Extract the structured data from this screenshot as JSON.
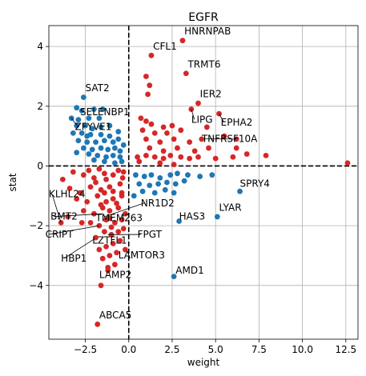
{
  "chart_data": {
    "type": "scatter",
    "title": "EGFR",
    "xlabel": "weight",
    "ylabel": "stat",
    "xlim": [
      -4.6,
      13.2
    ],
    "ylim": [
      -5.8,
      4.7
    ],
    "xticks": [
      -2.5,
      0.0,
      2.5,
      5.0,
      7.5,
      10.0,
      12.5
    ],
    "xtick_labels": [
      "−2.5",
      "0.0",
      "2.5",
      "5.0",
      "7.5",
      "10.0",
      "12.5"
    ],
    "yticks": [
      -4,
      -2,
      0,
      2,
      4
    ],
    "ytick_labels": [
      "−4",
      "−2",
      "0",
      "2",
      "4"
    ],
    "grid": true,
    "reference_lines": {
      "x": 0,
      "y": 0,
      "style": "dashed"
    },
    "colors": {
      "up": "#d62728",
      "down": "#1f77b4"
    },
    "series": [
      {
        "name": "red",
        "color": "#d62728",
        "points": [
          [
            3.1,
            4.2
          ],
          [
            1.3,
            3.7
          ],
          [
            3.3,
            3.1
          ],
          [
            1.0,
            3.0
          ],
          [
            1.2,
            2.7
          ],
          [
            1.1,
            2.4
          ],
          [
            4.0,
            2.1
          ],
          [
            3.6,
            1.9
          ],
          [
            5.2,
            1.75
          ],
          [
            0.7,
            1.6
          ],
          [
            1.0,
            1.5
          ],
          [
            1.3,
            1.4
          ],
          [
            2.0,
            1.3
          ],
          [
            2.5,
            1.35
          ],
          [
            0.8,
            1.2
          ],
          [
            1.5,
            1.1
          ],
          [
            2.2,
            1.1
          ],
          [
            3.0,
            1.2
          ],
          [
            4.5,
            1.3
          ],
          [
            5.5,
            1.0
          ],
          [
            6.2,
            0.9
          ],
          [
            1.0,
            0.9
          ],
          [
            1.8,
            0.8
          ],
          [
            2.6,
            0.9
          ],
          [
            3.5,
            0.8
          ],
          [
            4.2,
            0.9
          ],
          [
            1.2,
            0.6
          ],
          [
            2.0,
            0.5
          ],
          [
            2.8,
            0.6
          ],
          [
            3.8,
            0.5
          ],
          [
            4.6,
            0.6
          ],
          [
            6.2,
            0.6
          ],
          [
            0.5,
            0.3
          ],
          [
            1.0,
            0.35
          ],
          [
            1.5,
            0.3
          ],
          [
            2.0,
            0.25
          ],
          [
            2.4,
            0.35
          ],
          [
            3.0,
            0.3
          ],
          [
            3.5,
            0.25
          ],
          [
            4.0,
            0.3
          ],
          [
            5.0,
            0.25
          ],
          [
            6.0,
            0.3
          ],
          [
            6.8,
            0.4
          ],
          [
            7.9,
            0.35
          ],
          [
            12.6,
            0.1
          ],
          [
            0.6,
            0.15
          ],
          [
            1.8,
            0.1
          ],
          [
            2.6,
            0.05
          ],
          [
            -0.3,
            -0.2
          ],
          [
            -0.9,
            -0.3
          ],
          [
            -1.4,
            -0.25
          ],
          [
            -2.0,
            -0.4
          ],
          [
            -2.6,
            -0.3
          ],
          [
            -3.2,
            -0.2
          ],
          [
            -3.8,
            -0.45
          ],
          [
            -0.5,
            -0.6
          ],
          [
            -1.1,
            -0.7
          ],
          [
            -1.6,
            -0.8
          ],
          [
            -2.2,
            -0.7
          ],
          [
            -2.8,
            -0.9
          ],
          [
            -3.4,
            -0.75
          ],
          [
            -0.4,
            -1.0
          ],
          [
            -0.9,
            -1.1
          ],
          [
            -1.3,
            -1.2
          ],
          [
            -1.8,
            -1.0
          ],
          [
            -2.4,
            -1.2
          ],
          [
            -3.0,
            -1.1
          ],
          [
            -0.6,
            -1.4
          ],
          [
            -1.1,
            -1.5
          ],
          [
            -1.5,
            -1.4
          ],
          [
            -2.0,
            -1.6
          ],
          [
            -2.6,
            -1.5
          ],
          [
            -0.4,
            -1.8
          ],
          [
            -0.8,
            -1.9
          ],
          [
            -1.3,
            -1.8
          ],
          [
            -1.7,
            -2.0
          ],
          [
            -2.2,
            -1.9
          ],
          [
            -0.6,
            -2.2
          ],
          [
            -1.0,
            -2.3
          ],
          [
            -1.4,
            -2.2
          ],
          [
            -1.9,
            -2.4
          ],
          [
            -0.5,
            -2.5
          ],
          [
            -0.9,
            -2.6
          ],
          [
            -1.3,
            -2.7
          ],
          [
            -1.7,
            -2.8
          ],
          [
            -0.7,
            -2.9
          ],
          [
            -1.1,
            -3.0
          ],
          [
            -1.5,
            -3.1
          ],
          [
            -0.8,
            -3.3
          ],
          [
            -1.2,
            -3.4
          ],
          [
            -0.4,
            -0.9
          ],
          [
            -0.2,
            -1.6
          ],
          [
            -0.3,
            -2.1
          ],
          [
            -0.2,
            -2.8
          ],
          [
            -0.35,
            -0.4
          ],
          [
            -0.6,
            -0.15
          ],
          [
            -1.3,
            -0.45
          ],
          [
            -1.6,
            -1.3
          ],
          [
            -1.1,
            -1.75
          ],
          [
            -0.7,
            -1.25
          ],
          [
            -1.4,
            -0.9
          ],
          [
            -1.9,
            -0.55
          ],
          [
            -1.0,
            -2.05
          ],
          [
            -0.9,
            -0.85
          ],
          [
            -2.7,
            -1.9
          ],
          [
            -3.5,
            -1.7
          ],
          [
            -3.9,
            -1.9
          ],
          [
            -1.6,
            -4.0
          ],
          [
            -1.8,
            -5.3
          ],
          [
            -1.2,
            -3.5
          ],
          [
            -1.7,
            -0.1
          ],
          [
            -2.3,
            -0.15
          ]
        ]
      },
      {
        "name": "blue",
        "color": "#1f77b4",
        "points": [
          [
            -2.6,
            2.3
          ],
          [
            -3.0,
            1.95
          ],
          [
            -2.7,
            1.85
          ],
          [
            -2.0,
            1.9
          ],
          [
            -1.5,
            1.9
          ],
          [
            -3.3,
            1.6
          ],
          [
            -2.9,
            1.55
          ],
          [
            -2.3,
            1.6
          ],
          [
            -1.7,
            1.6
          ],
          [
            -3.0,
            1.35
          ],
          [
            -2.5,
            1.35
          ],
          [
            -2.1,
            1.25
          ],
          [
            -1.6,
            1.3
          ],
          [
            -1.1,
            1.35
          ],
          [
            -3.2,
            1.1
          ],
          [
            -2.7,
            1.1
          ],
          [
            -2.2,
            1.05
          ],
          [
            -1.6,
            1.05
          ],
          [
            -1.1,
            1.0
          ],
          [
            -0.6,
            1.15
          ],
          [
            -2.9,
            0.85
          ],
          [
            -2.4,
            0.8
          ],
          [
            -1.9,
            0.8
          ],
          [
            -1.4,
            0.85
          ],
          [
            -0.9,
            0.8
          ],
          [
            -0.6,
            0.9
          ],
          [
            -2.6,
            0.6
          ],
          [
            -2.1,
            0.55
          ],
          [
            -1.6,
            0.6
          ],
          [
            -1.2,
            0.55
          ],
          [
            -0.8,
            0.6
          ],
          [
            -0.5,
            0.5
          ],
          [
            -3.0,
            0.45
          ],
          [
            -2.3,
            0.4
          ],
          [
            -1.8,
            0.35
          ],
          [
            -1.3,
            0.3
          ],
          [
            -0.9,
            0.35
          ],
          [
            -0.5,
            0.3
          ],
          [
            -2.0,
            0.2
          ],
          [
            -1.4,
            0.15
          ],
          [
            -0.8,
            0.1
          ],
          [
            -0.4,
            0.15
          ],
          [
            0.4,
            -0.3
          ],
          [
            0.9,
            -0.35
          ],
          [
            1.3,
            -0.3
          ],
          [
            1.8,
            -0.4
          ],
          [
            2.4,
            -0.3
          ],
          [
            2.8,
            -0.25
          ],
          [
            3.4,
            -0.3
          ],
          [
            0.6,
            -0.6
          ],
          [
            1.2,
            -0.65
          ],
          [
            1.7,
            -0.6
          ],
          [
            2.2,
            -0.55
          ],
          [
            2.7,
            -0.6
          ],
          [
            3.2,
            -0.5
          ],
          [
            4.1,
            -0.35
          ],
          [
            4.8,
            -0.3
          ],
          [
            0.8,
            -0.85
          ],
          [
            1.5,
            -0.9
          ],
          [
            2.1,
            -0.8
          ],
          [
            2.6,
            -0.9
          ],
          [
            0.3,
            -1.0
          ],
          [
            6.4,
            -0.85
          ],
          [
            5.1,
            -1.7
          ],
          [
            2.9,
            -1.85
          ],
          [
            2.6,
            -3.7
          ],
          [
            -0.3,
            0.7
          ],
          [
            -2.4,
            1.0
          ]
        ]
      }
    ],
    "annotations": [
      {
        "text": "HNRNPAB",
        "x": 3.1,
        "y": 4.2,
        "label_x": 3.2,
        "label_y": 4.4
      },
      {
        "text": "CFL1",
        "x": 1.3,
        "y": 3.7,
        "label_x": 1.4,
        "label_y": 3.9
      },
      {
        "text": "TRMT6",
        "x": 3.3,
        "y": 3.1,
        "label_x": 3.4,
        "label_y": 3.3
      },
      {
        "text": "IER2",
        "x": 4.0,
        "y": 2.1,
        "label_x": 4.1,
        "label_y": 2.3
      },
      {
        "text": "LIPG",
        "x": 3.6,
        "y": 1.9,
        "label_x": 3.6,
        "label_y": 1.45
      },
      {
        "text": "EPHA2",
        "x": 5.2,
        "y": 1.75,
        "label_x": 5.3,
        "label_y": 1.35
      },
      {
        "text": "TNFRSF10A",
        "x": 6.2,
        "y": 0.9,
        "label_x": 4.2,
        "label_y": 0.8
      },
      {
        "text": "SAT2",
        "x": -2.6,
        "y": 2.3,
        "label_x": -2.5,
        "label_y": 2.5
      },
      {
        "text": "SELENBP1",
        "x": -3.0,
        "y": 1.95,
        "label_x": -2.8,
        "label_y": 1.7
      },
      {
        "text": "ZFYVE1",
        "x": -3.3,
        "y": 1.6,
        "label_x": -3.1,
        "label_y": 1.2
      },
      {
        "text": "SPRY4",
        "x": 6.4,
        "y": -0.85,
        "label_x": 6.4,
        "label_y": -0.7
      },
      {
        "text": "LYAR",
        "x": 5.1,
        "y": -1.7,
        "label_x": 5.2,
        "label_y": -1.5
      },
      {
        "text": "HAS3",
        "x": 2.9,
        "y": -1.85,
        "label_x": 2.9,
        "label_y": -1.8
      },
      {
        "text": "AMD1",
        "x": 2.6,
        "y": -3.7,
        "label_x": 2.7,
        "label_y": -3.6
      },
      {
        "text": "KLHL24",
        "x": -3.9,
        "y": -1.9,
        "label_x": -4.6,
        "label_y": -1.05
      },
      {
        "text": "NR1D2",
        "x": -1.4,
        "y": -1.7,
        "label_x": 0.7,
        "label_y": -1.35
      },
      {
        "text": "BMT2",
        "x": -1.5,
        "y": -1.6,
        "label_x": -4.5,
        "label_y": -1.8
      },
      {
        "text": "TMEM263",
        "x": -1.3,
        "y": -1.8,
        "label_x": -1.9,
        "label_y": -1.85
      },
      {
        "text": "CRIPT",
        "x": -1.7,
        "y": -2.0,
        "label_x": -4.8,
        "label_y": -2.4
      },
      {
        "text": "FPGT",
        "x": -1.2,
        "y": -2.3,
        "label_x": 0.5,
        "label_y": -2.4
      },
      {
        "text": "LZTFL1",
        "x": -1.7,
        "y": -2.4,
        "label_x": -2.1,
        "label_y": -2.6
      },
      {
        "text": "HBP1",
        "x": -2.0,
        "y": -2.45,
        "label_x": -3.9,
        "label_y": -3.2
      },
      {
        "text": "LAMTOR3",
        "x": -1.2,
        "y": -3.1,
        "label_x": -0.6,
        "label_y": -3.1
      },
      {
        "text": "LAMP2",
        "x": -1.6,
        "y": -4.0,
        "label_x": -1.7,
        "label_y": -3.75
      },
      {
        "text": "ABCA5",
        "x": -1.8,
        "y": -5.3,
        "label_x": -1.7,
        "label_y": -5.1
      }
    ]
  }
}
